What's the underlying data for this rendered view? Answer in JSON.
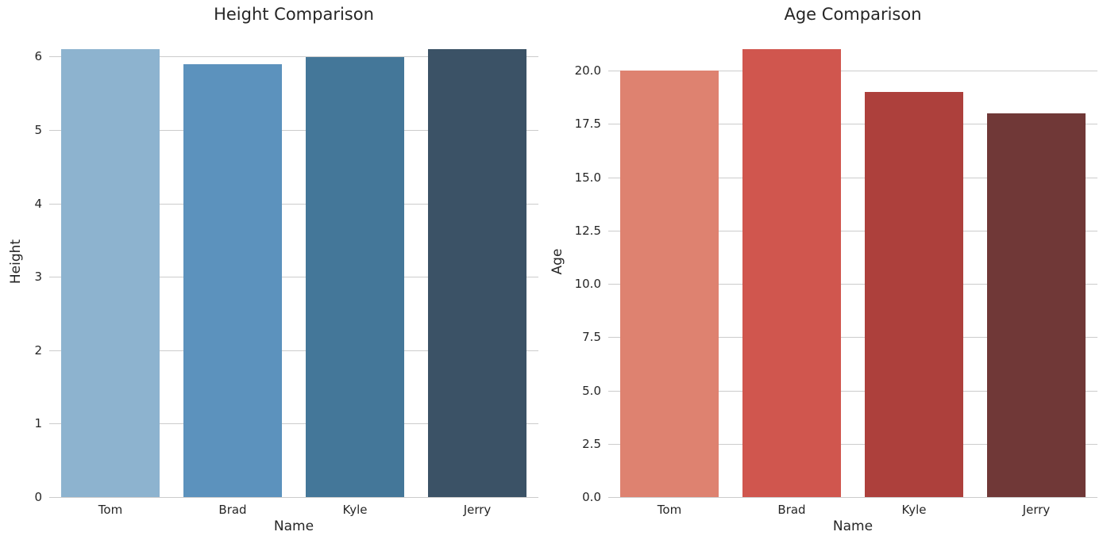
{
  "figure": {
    "background": "#ffffff",
    "text_color": "#262626",
    "grid_color": "#cccccc"
  },
  "chart_data": [
    {
      "type": "bar",
      "title": "Height Comparison",
      "xlabel": "Name",
      "ylabel": "Height",
      "categories": [
        "Tom",
        "Brad",
        "Kyle",
        "Jerry"
      ],
      "values": [
        6.1,
        5.9,
        6.0,
        6.1
      ],
      "bar_colors": [
        "#8db3cf",
        "#5c92bd",
        "#447799",
        "#3b5266"
      ],
      "ylim": [
        0,
        6.405
      ],
      "yticks": [
        0,
        1,
        2,
        3,
        4,
        5,
        6
      ],
      "ytick_labels": [
        "0",
        "1",
        "2",
        "3",
        "4",
        "5",
        "6"
      ],
      "grid": true,
      "legend": "none"
    },
    {
      "type": "bar",
      "title": "Age Comparison",
      "xlabel": "Name",
      "ylabel": "Age",
      "categories": [
        "Tom",
        "Brad",
        "Kyle",
        "Jerry"
      ],
      "values": [
        20,
        21,
        19,
        18
      ],
      "bar_colors": [
        "#de8270",
        "#d0564e",
        "#ad403c",
        "#703837"
      ],
      "ylim": [
        0,
        22.05
      ],
      "yticks": [
        0,
        2.5,
        5,
        7.5,
        10,
        12.5,
        15,
        17.5,
        20
      ],
      "ytick_labels": [
        "0.0",
        "2.5",
        "5.0",
        "7.5",
        "10.0",
        "12.5",
        "15.0",
        "17.5",
        "20.0"
      ],
      "grid": true,
      "legend": "none"
    }
  ]
}
